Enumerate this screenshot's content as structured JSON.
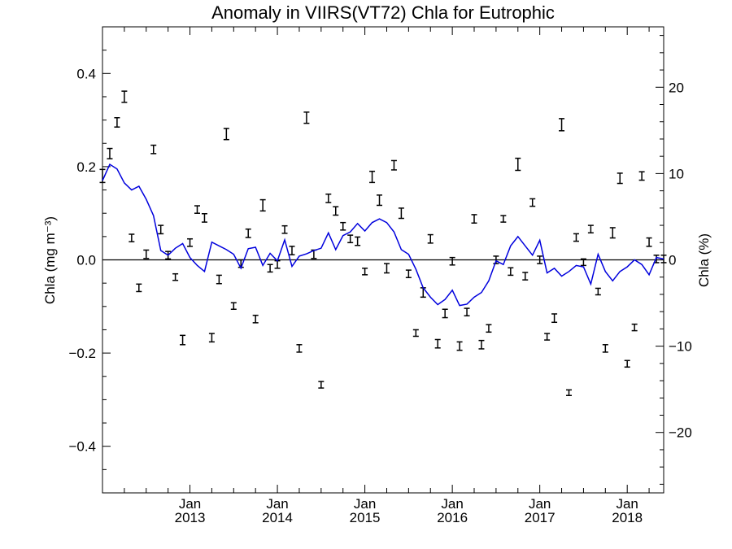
{
  "chart_data": {
    "type": "line",
    "title": "Anomaly in VIIRS(VT72) Chla for Eutrophic",
    "ylabel": "Chla (mg m⁻³)",
    "ylabel_right": "Chla (%)",
    "ylim": [
      -0.5,
      0.5
    ],
    "ylim_right": [
      -27,
      27
    ],
    "yticks": [
      -0.4,
      -0.2,
      0.0,
      0.2,
      0.4
    ],
    "yticks_labels": [
      "−0.4",
      "−0.2",
      "0.0",
      "0.2",
      "0.4"
    ],
    "yticks_right": [
      -20,
      -10,
      0,
      10,
      20
    ],
    "yticks_right_labels": [
      "−20",
      "−10",
      "0",
      "10",
      "20"
    ],
    "xlim": [
      "2012-01",
      "2018-06"
    ],
    "xticks": [
      {
        "month": "Jan",
        "year": "2013"
      },
      {
        "month": "Jan",
        "year": "2014"
      },
      {
        "month": "Jan",
        "year": "2015"
      },
      {
        "month": "Jan",
        "year": "2016"
      },
      {
        "month": "Jan",
        "year": "2017"
      },
      {
        "month": "Jan",
        "year": "2018"
      }
    ],
    "line_color": "#0000dd",
    "errorbar_color": "#000000",
    "zero_line": true,
    "series": [
      {
        "type": "line",
        "x": [
          "2012-01",
          "2012-02",
          "2012-03",
          "2012-04",
          "2012-05",
          "2012-06",
          "2012-07",
          "2012-08",
          "2012-09",
          "2012-10",
          "2012-11",
          "2012-12",
          "2013-01",
          "2013-02",
          "2013-03",
          "2013-04",
          "2013-05",
          "2013-06",
          "2013-07",
          "2013-08",
          "2013-09",
          "2013-10",
          "2013-11",
          "2013-12",
          "2014-01",
          "2014-02",
          "2014-03",
          "2014-04",
          "2014-05",
          "2014-06",
          "2014-07",
          "2014-08",
          "2014-09",
          "2014-10",
          "2014-11",
          "2014-12",
          "2015-01",
          "2015-02",
          "2015-03",
          "2015-04",
          "2015-05",
          "2015-06",
          "2015-07",
          "2015-08",
          "2015-09",
          "2015-10",
          "2015-11",
          "2015-12",
          "2016-01",
          "2016-02",
          "2016-03",
          "2016-04",
          "2016-05",
          "2016-06",
          "2016-07",
          "2016-08",
          "2016-09",
          "2016-10",
          "2016-11",
          "2016-12",
          "2017-01",
          "2017-02",
          "2017-03",
          "2017-04",
          "2017-05",
          "2017-06",
          "2017-07",
          "2017-08",
          "2017-09",
          "2017-10",
          "2017-11",
          "2017-12",
          "2018-01",
          "2018-02",
          "2018-03",
          "2018-04",
          "2018-05",
          "2018-06"
        ],
        "y": [
          0.17,
          0.205,
          0.195,
          0.165,
          0.15,
          0.158,
          0.13,
          0.095,
          0.02,
          0.01,
          0.025,
          0.035,
          0.005,
          -0.012,
          -0.025,
          0.038,
          0.03,
          0.022,
          0.012,
          -0.018,
          0.024,
          0.027,
          -0.012,
          0.014,
          -0.002,
          0.043,
          -0.014,
          0.008,
          0.013,
          0.02,
          0.025,
          0.058,
          0.022,
          0.052,
          0.06,
          0.078,
          0.062,
          0.08,
          0.088,
          0.08,
          0.06,
          0.022,
          0.012,
          -0.02,
          -0.06,
          -0.08,
          -0.096,
          -0.085,
          -0.065,
          -0.098,
          -0.095,
          -0.08,
          -0.07,
          -0.045,
          -0.002,
          -0.01,
          0.03,
          0.05,
          0.03,
          0.01,
          0.042,
          -0.028,
          -0.018,
          -0.035,
          -0.025,
          -0.012,
          -0.015,
          -0.052,
          0.012,
          -0.025,
          -0.045,
          -0.025,
          -0.015,
          0.0,
          -0.01,
          -0.032,
          0.005,
          0.002
        ]
      },
      {
        "type": "errorbar",
        "x": [
          "2012-01",
          "2012-02",
          "2012-03",
          "2012-04",
          "2012-05",
          "2012-06",
          "2012-07",
          "2012-08",
          "2012-09",
          "2012-10",
          "2012-11",
          "2012-12",
          "2013-01",
          "2013-02",
          "2013-03",
          "2013-04",
          "2013-05",
          "2013-06",
          "2013-07",
          "2013-08",
          "2013-09",
          "2013-10",
          "2013-11",
          "2013-12",
          "2014-01",
          "2014-02",
          "2014-03",
          "2014-04",
          "2014-05",
          "2014-06",
          "2014-07",
          "2014-08",
          "2014-09",
          "2014-10",
          "2014-11",
          "2014-12",
          "2015-01",
          "2015-02",
          "2015-03",
          "2015-04",
          "2015-05",
          "2015-06",
          "2015-07",
          "2015-08",
          "2015-09",
          "2015-10",
          "2015-11",
          "2015-12",
          "2016-01",
          "2016-02",
          "2016-03",
          "2016-04",
          "2016-05",
          "2016-06",
          "2016-07",
          "2016-08",
          "2016-09",
          "2016-10",
          "2016-11",
          "2016-12",
          "2017-01",
          "2017-02",
          "2017-03",
          "2017-04",
          "2017-05",
          "2017-06",
          "2017-07",
          "2017-08",
          "2017-09",
          "2017-10",
          "2017-11",
          "2017-12",
          "2018-01",
          "2018-02",
          "2018-03",
          "2018-04",
          "2018-05",
          "2018-06"
        ],
        "y": [
          0.18,
          0.228,
          0.295,
          0.35,
          0.047,
          -0.06,
          0.012,
          0.237,
          0.065,
          0.01,
          -0.037,
          -0.172,
          0.037,
          0.108,
          0.09,
          -0.167,
          -0.042,
          0.27,
          -0.099,
          -0.008,
          0.057,
          -0.127,
          0.117,
          -0.018,
          -0.01,
          0.065,
          0.02,
          -0.19,
          0.305,
          0.012,
          -0.268,
          0.132,
          0.105,
          0.072,
          0.045,
          0.04,
          -0.025,
          0.178,
          0.128,
          -0.018,
          0.203,
          0.1,
          -0.03,
          -0.157,
          -0.07,
          0.045,
          -0.18,
          -0.115,
          -0.003,
          -0.185,
          -0.112,
          0.088,
          -0.182,
          -0.147,
          0.0,
          0.088,
          -0.025,
          0.205,
          -0.035,
          0.123,
          0.0,
          -0.165,
          -0.125,
          0.29,
          -0.285,
          0.048,
          -0.005,
          0.066,
          -0.068,
          -0.19,
          0.058,
          0.175,
          -0.223,
          -0.145,
          0.18,
          0.038,
          0.002,
          0.002
        ],
        "err": [
          0.014,
          0.011,
          0.01,
          0.012,
          0.008,
          0.008,
          0.009,
          0.009,
          0.009,
          0.008,
          0.007,
          0.01,
          0.008,
          0.008,
          0.009,
          0.009,
          0.009,
          0.012,
          0.007,
          0.008,
          0.009,
          0.008,
          0.012,
          0.008,
          0.008,
          0.008,
          0.009,
          0.008,
          0.012,
          0.009,
          0.007,
          0.009,
          0.009,
          0.008,
          0.008,
          0.009,
          0.007,
          0.012,
          0.011,
          0.01,
          0.01,
          0.011,
          0.008,
          0.007,
          0.01,
          0.009,
          0.009,
          0.009,
          0.008,
          0.009,
          0.008,
          0.009,
          0.009,
          0.008,
          0.008,
          0.007,
          0.008,
          0.013,
          0.008,
          0.008,
          0.008,
          0.007,
          0.009,
          0.013,
          0.006,
          0.008,
          0.007,
          0.008,
          0.007,
          0.008,
          0.011,
          0.011,
          0.007,
          0.007,
          0.009,
          0.009,
          0.008,
          0.008
        ]
      }
    ]
  }
}
